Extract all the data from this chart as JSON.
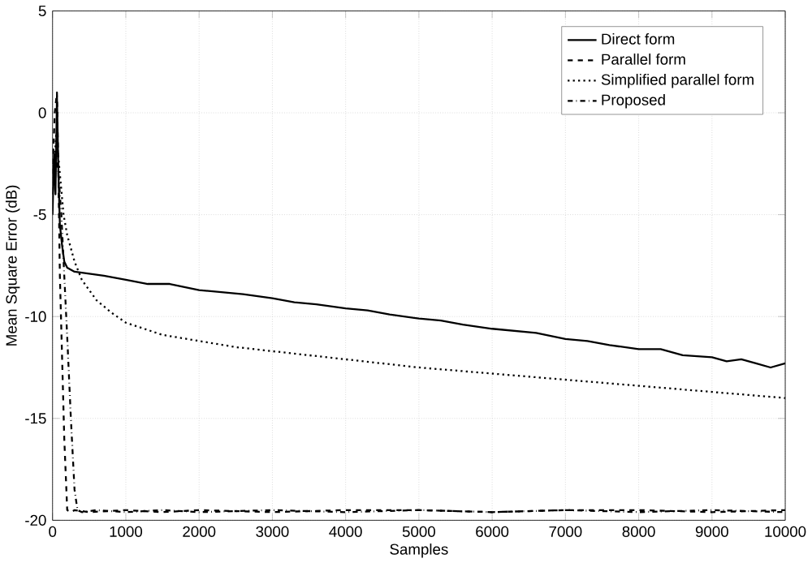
{
  "chart_data": {
    "type": "line",
    "xlabel": "Samples",
    "ylabel": "Mean Square Error (dB)",
    "xlim": [
      0,
      10000
    ],
    "ylim": [
      -20,
      5
    ],
    "xticks": [
      0,
      1000,
      2000,
      3000,
      4000,
      5000,
      6000,
      7000,
      8000,
      9000,
      10000
    ],
    "yticks": [
      -20,
      -15,
      -10,
      -5,
      0,
      5
    ],
    "grid": true,
    "legend": "top right",
    "marker": "none",
    "series": [
      {
        "name": "Direct form",
        "color": "#000000",
        "line_style": "solid",
        "x": [
          0,
          20,
          40,
          60,
          80,
          100,
          130,
          160,
          200,
          300,
          500,
          700,
          1000,
          1300,
          1600,
          2000,
          2300,
          2600,
          3000,
          3300,
          3600,
          4000,
          4300,
          4600,
          5000,
          5300,
          5600,
          6000,
          6300,
          6600,
          7000,
          7300,
          7600,
          8000,
          8300,
          8600,
          9000,
          9200,
          9400,
          9600,
          9800,
          10000
        ],
        "values": [
          -5,
          -2,
          -4,
          0.8,
          -3,
          -5.5,
          -6.5,
          -7.3,
          -7.6,
          -7.8,
          -7.9,
          -8.0,
          -8.2,
          -8.4,
          -8.4,
          -8.7,
          -8.8,
          -8.9,
          -9.1,
          -9.3,
          -9.4,
          -9.6,
          -9.7,
          -9.9,
          -10.1,
          -10.2,
          -10.4,
          -10.6,
          -10.7,
          -10.8,
          -11.1,
          -11.2,
          -11.4,
          -11.6,
          -11.6,
          -11.9,
          -12.0,
          -12.2,
          -12.1,
          -12.3,
          -12.5,
          -12.3
        ]
      },
      {
        "name": "Parallel form",
        "color": "#000000",
        "line_style": "dashed",
        "x": [
          0,
          30,
          60,
          80,
          100,
          130,
          160,
          200,
          250,
          300,
          500,
          1000,
          1500,
          2000,
          3000,
          4000,
          5000,
          6000,
          7000,
          8000,
          9000,
          10000
        ],
        "values": [
          -3,
          0,
          1,
          -3,
          -8,
          -12,
          -16,
          -19.5,
          -19.6,
          -19.5,
          -19.6,
          -19.5,
          -19.6,
          -19.5,
          -19.6,
          -19.5,
          -19.5,
          -19.6,
          -19.5,
          -19.5,
          -19.6,
          -19.5
        ]
      },
      {
        "name": "Simplified parallel form",
        "color": "#000000",
        "line_style": "dotted",
        "x": [
          0,
          50,
          100,
          150,
          200,
          300,
          400,
          600,
          800,
          1000,
          1500,
          2000,
          2500,
          3000,
          3500,
          4000,
          5000,
          6000,
          7000,
          8000,
          9000,
          10000
        ],
        "values": [
          -4,
          -1,
          -3,
          -5,
          -6,
          -7.3,
          -8.2,
          -9.2,
          -9.8,
          -10.3,
          -10.9,
          -11.2,
          -11.5,
          -11.7,
          -11.9,
          -12.1,
          -12.5,
          -12.8,
          -13.1,
          -13.4,
          -13.7,
          -14.0
        ]
      },
      {
        "name": "Proposed",
        "color": "#000000",
        "line_style": "dashdot",
        "x": [
          0,
          40,
          80,
          120,
          160,
          200,
          250,
          300,
          340,
          400,
          600,
          1000,
          1500,
          2000,
          3000,
          4000,
          5000,
          6000,
          7000,
          8000,
          9000,
          10000
        ],
        "values": [
          -4,
          -2,
          -3,
          -5,
          -8,
          -11,
          -15,
          -18.5,
          -19.5,
          -19.6,
          -19.5,
          -19.6,
          -19.5,
          -19.6,
          -19.5,
          -19.6,
          -19.5,
          -19.6,
          -19.5,
          -19.6,
          -19.5,
          -19.6
        ]
      }
    ]
  }
}
